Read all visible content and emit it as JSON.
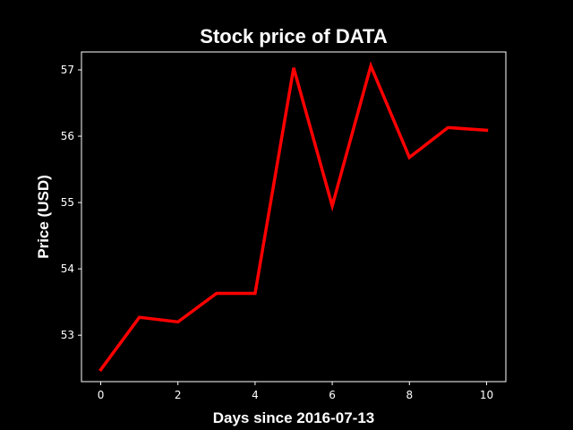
{
  "chart_data": {
    "type": "line",
    "title": "Stock price of DATA",
    "xlabel": "Days since 2016-07-13",
    "ylabel": "Price (USD)",
    "x": [
      0,
      1,
      2,
      3,
      4,
      5,
      6,
      7,
      8,
      9,
      10
    ],
    "series": [
      {
        "values": [
          52.48,
          53.27,
          53.2,
          53.63,
          53.63,
          57.03,
          54.95,
          57.06,
          55.68,
          56.13,
          56.09
        ],
        "color": "#ff0000"
      }
    ],
    "xlim": [
      -0.5,
      10.5
    ],
    "ylim": [
      52.3,
      57.27
    ],
    "xticks": [
      0,
      2,
      4,
      6,
      8,
      10
    ],
    "yticks": [
      53,
      54,
      55,
      56,
      57
    ],
    "grid": false,
    "background": "#000000",
    "axis_color": "#ffffff"
  }
}
